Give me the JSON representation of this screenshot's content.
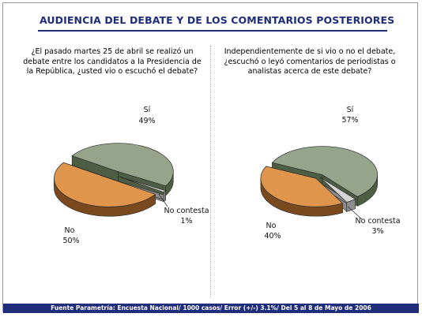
{
  "title": "AUDIENCIA DEL DEBATE Y DE LOS COMENTARIOS POSTERIORES",
  "footer": "Fuente Parametría: Encuesta Nacional/ 1000 casos/ Error (+/-) 3.1%/ Del 5 al 8 de Mayo  de 2006",
  "colors": {
    "si_top": "#96a48b",
    "si_side": "#4d5e44",
    "no_top": "#e0954d",
    "no_side": "#7a4a1e",
    "nc_top": "#d6d6d6",
    "nc_side": "#8c8c8c",
    "title": "#1f2d7a"
  },
  "chart_data": [
    {
      "type": "pie",
      "question": "¿El pasado martes 25 de abril se realizó un debate entre los candidatos a la Presidencia de la República, ¿usted vio o escuchó el debate?",
      "slices": [
        {
          "label": "Sí",
          "value": 49,
          "value_text": "49%"
        },
        {
          "label": "No contesta",
          "value": 1,
          "value_text": "1%"
        },
        {
          "label": "No",
          "value": 50,
          "value_text": "50%"
        }
      ]
    },
    {
      "type": "pie",
      "question": "Independientemente de si vio o no el debate, ¿escuchó o leyó comentarios de periodistas o analistas acerca de este debate?",
      "slices": [
        {
          "label": "Sí",
          "value": 57,
          "value_text": "57%"
        },
        {
          "label": "No contesta",
          "value": 3,
          "value_text": "3%"
        },
        {
          "label": "No",
          "value": 40,
          "value_text": "40%"
        }
      ]
    }
  ]
}
